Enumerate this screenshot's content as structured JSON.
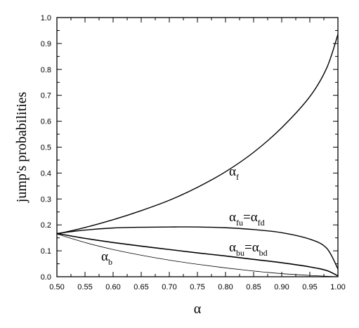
{
  "chart_data": {
    "type": "line",
    "xlabel": "α",
    "ylabel": "jump's probabilities",
    "xlim": [
      0.5,
      1.0
    ],
    "ylim": [
      0.0,
      1.0
    ],
    "grid": false,
    "legend": "none",
    "x_ticks": [
      "0.50",
      "0.55",
      "0.60",
      "0.65",
      "0.70",
      "0.75",
      "0.80",
      "0.85",
      "0.90",
      "0.95",
      "1.00"
    ],
    "y_ticks": [
      "0.0",
      "0.1",
      "0.2",
      "0.3",
      "0.4",
      "0.5",
      "0.6",
      "0.7",
      "0.8",
      "0.9",
      "1.0"
    ],
    "series": [
      {
        "label_main": "α",
        "label_sub": "f",
        "x": [
          0.5,
          0.55,
          0.6,
          0.65,
          0.7,
          0.75,
          0.8,
          0.85,
          0.9,
          0.95,
          0.98,
          1.0
        ],
        "y": [
          0.165,
          0.19,
          0.22,
          0.255,
          0.295,
          0.345,
          0.405,
          0.48,
          0.575,
          0.695,
          0.805,
          0.935
        ]
      },
      {
        "label_main": "α",
        "label_sub": "fu",
        "label_eq": "=",
        "label_main2": "α",
        "label_sub2": "fd",
        "x": [
          0.5,
          0.55,
          0.6,
          0.65,
          0.7,
          0.75,
          0.8,
          0.85,
          0.9,
          0.95,
          0.98,
          1.0
        ],
        "y": [
          0.167,
          0.18,
          0.188,
          0.191,
          0.192,
          0.192,
          0.189,
          0.182,
          0.17,
          0.145,
          0.11,
          0.03
        ]
      },
      {
        "label_main": "α",
        "label_sub": "bu",
        "label_eq": "=",
        "label_main2": "α",
        "label_sub2": "bd",
        "x": [
          0.5,
          0.55,
          0.6,
          0.65,
          0.7,
          0.75,
          0.8,
          0.85,
          0.9,
          0.95,
          0.98,
          1.0
        ],
        "y": [
          0.167,
          0.148,
          0.132,
          0.118,
          0.105,
          0.092,
          0.08,
          0.067,
          0.054,
          0.038,
          0.024,
          0.003
        ]
      },
      {
        "label_main": "α",
        "label_sub": "b",
        "x": [
          0.5,
          0.55,
          0.6,
          0.65,
          0.7,
          0.75,
          0.8,
          0.85,
          0.9,
          0.95,
          1.0
        ],
        "y": [
          0.165,
          0.132,
          0.105,
          0.083,
          0.064,
          0.048,
          0.034,
          0.022,
          0.012,
          0.005,
          0.0
        ]
      }
    ]
  }
}
